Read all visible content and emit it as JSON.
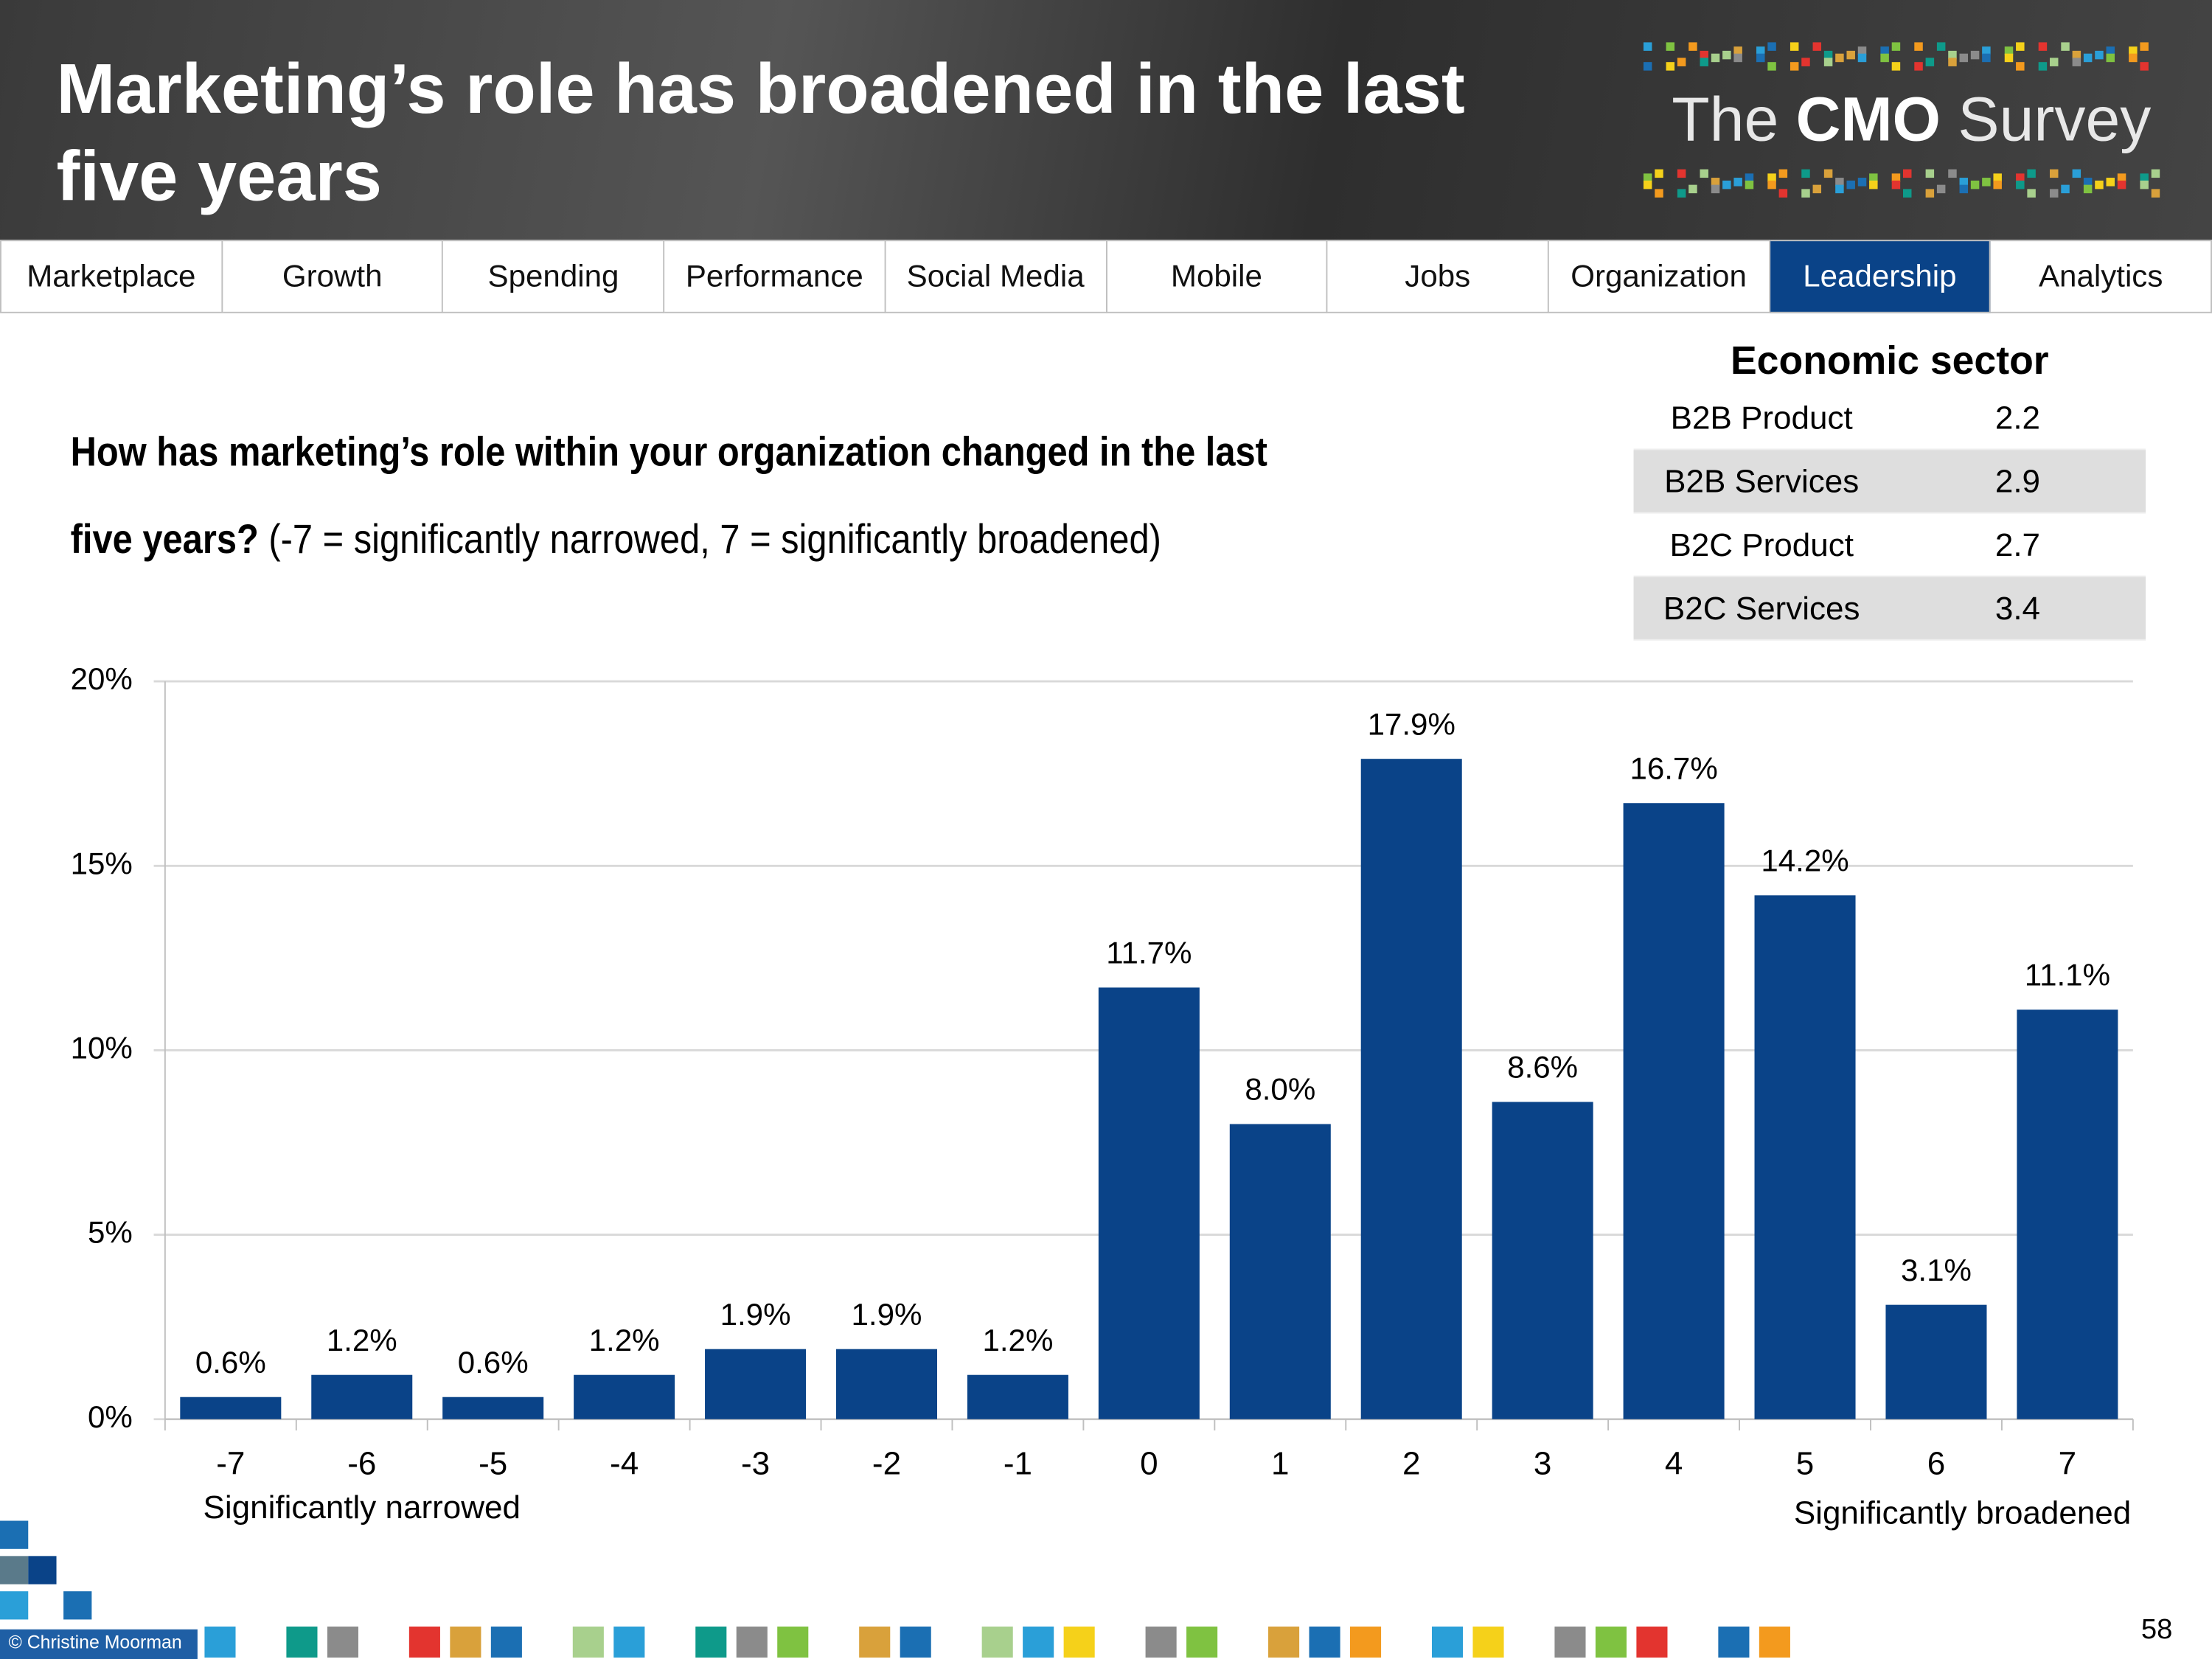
{
  "header": {
    "title": "Marketing’s role has broadened in the last five years",
    "logo": [
      "The",
      "CMO",
      "Survey"
    ]
  },
  "nav": {
    "tabs": [
      "Marketplace",
      "Growth",
      "Spending",
      "Performance",
      "Social Media",
      "Mobile",
      "Jobs",
      "Organization",
      "Leadership",
      "Analytics"
    ],
    "active_index": 8
  },
  "question": {
    "bold": "How has marketing’s role within your organization changed in the last five years?",
    "normal": "(-7 = significantly narrowed, 7 = significantly broadened)"
  },
  "table": {
    "title": "Economic sector",
    "rows": [
      [
        "B2B Product",
        2.2
      ],
      [
        "B2B Services",
        2.9
      ],
      [
        "B2C Product",
        2.7
      ],
      [
        "B2C Services",
        3.4
      ]
    ]
  },
  "chart_data": {
    "type": "bar",
    "categories": [
      "-7",
      "-6",
      "-5",
      "-4",
      "-3",
      "-2",
      "-1",
      "0",
      "1",
      "2",
      "3",
      "4",
      "5",
      "6",
      "7"
    ],
    "values": [
      0.6,
      1.2,
      0.6,
      1.2,
      1.9,
      1.9,
      1.2,
      11.7,
      8.0,
      17.9,
      8.6,
      16.7,
      14.2,
      3.1,
      11.1
    ],
    "value_labels": [
      "0.6%",
      "1.2%",
      "0.6%",
      "1.2%",
      "1.9%",
      "1.9%",
      "1.2%",
      "11.7%",
      "8.0%",
      "17.9%",
      "8.6%",
      "16.7%",
      "14.2%",
      "3.1%",
      "11.1%"
    ],
    "color": "#0a4388",
    "ylim": [
      0,
      20
    ],
    "yticks": [
      {
        "value": 0,
        "label": "0%"
      },
      {
        "value": 5,
        "label": "5%"
      },
      {
        "value": 10,
        "label": "10%"
      },
      {
        "value": 15,
        "label": "15%"
      },
      {
        "value": 20,
        "label": "20%"
      }
    ],
    "grid": true,
    "annotations": [
      "Significantly narrowed",
      "Significantly broadened"
    ]
  },
  "footer": {
    "credit": "© Christine Moorman",
    "page": "58"
  }
}
